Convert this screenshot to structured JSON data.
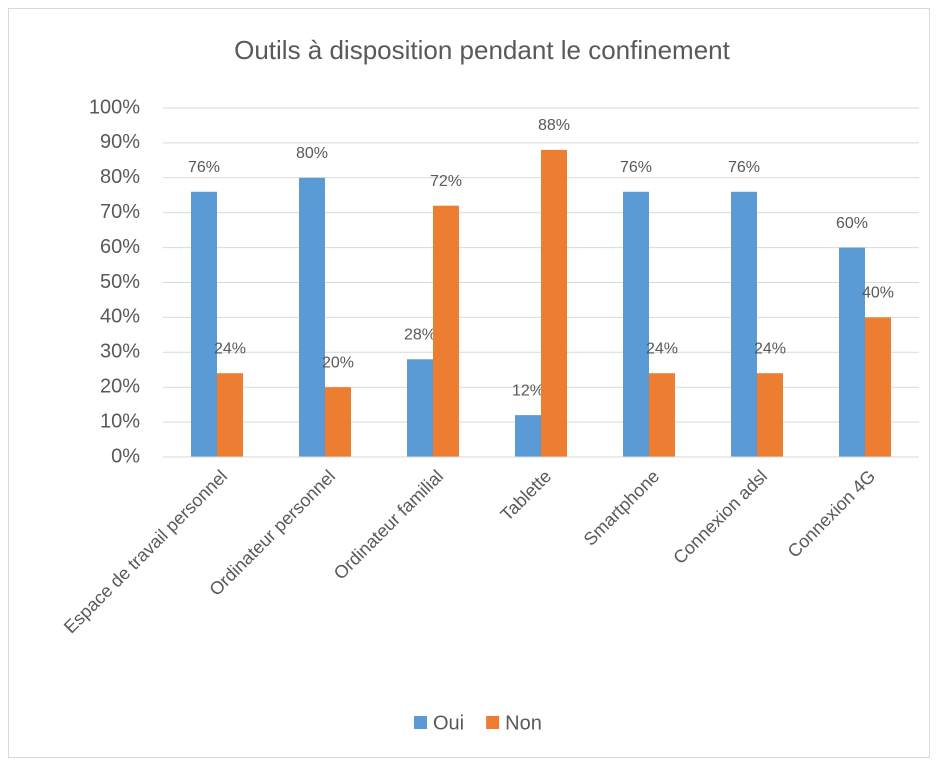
{
  "chart_data": {
    "type": "bar",
    "title": "Outils à disposition pendant le confinement",
    "categories": [
      "Espace de travail personnel",
      "Ordinateur personnel",
      "Ordinateur familial",
      "Tablette",
      "Smartphone",
      "Connexion adsl",
      "Connexion 4G"
    ],
    "series": [
      {
        "name": "Oui",
        "color": "#5b9bd5",
        "values": [
          76,
          80,
          28,
          12,
          76,
          76,
          60
        ],
        "value_labels": [
          "76%",
          "80%",
          "28%",
          "12%",
          "76%",
          "76%",
          "60%"
        ]
      },
      {
        "name": "Non",
        "color": "#ed7d31",
        "values": [
          24,
          20,
          72,
          88,
          24,
          24,
          40
        ],
        "value_labels": [
          "24%",
          "20%",
          "72%",
          "88%",
          "24%",
          "24%",
          "40%"
        ]
      }
    ],
    "ylim": [
      0,
      100
    ],
    "yticks": [
      {
        "value": 0,
        "label": "0%"
      },
      {
        "value": 10,
        "label": "10%"
      },
      {
        "value": 20,
        "label": "20%"
      },
      {
        "value": 30,
        "label": "30%"
      },
      {
        "value": 40,
        "label": "40%"
      },
      {
        "value": 50,
        "label": "50%"
      },
      {
        "value": 60,
        "label": "60%"
      },
      {
        "value": 70,
        "label": "70%"
      },
      {
        "value": 80,
        "label": "80%"
      },
      {
        "value": 90,
        "label": "90%"
      },
      {
        "value": 100,
        "label": "100%"
      }
    ],
    "grid": true,
    "legend": "bottom"
  }
}
